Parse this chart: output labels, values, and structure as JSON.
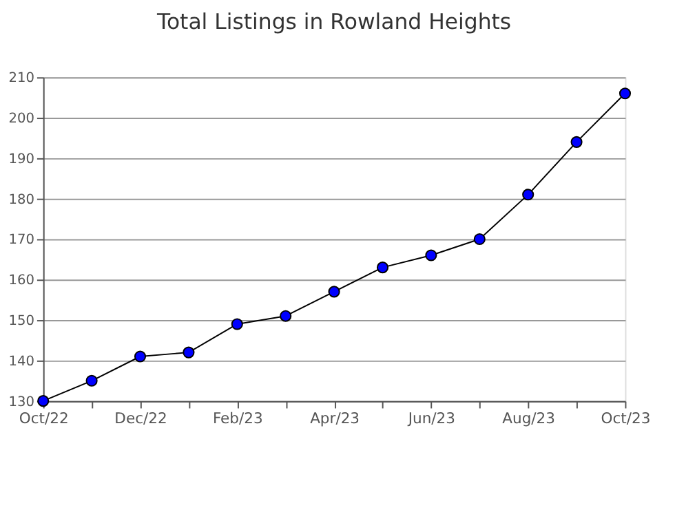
{
  "chart_data": {
    "type": "line",
    "title": "Total Listings in Rowland Heights",
    "categories": [
      "Oct/22",
      null,
      "Dec/22",
      null,
      "Feb/23",
      null,
      "Apr/23",
      null,
      "Jun/23",
      null,
      "Aug/23",
      null,
      "Oct/23"
    ],
    "series": [
      {
        "color": "#0000ff",
        "values": [
          130,
          135,
          141,
          142,
          149,
          151,
          157,
          163,
          166,
          170,
          181,
          194,
          206
        ]
      }
    ],
    "ylim": [
      130,
      210
    ],
    "yticks": [
      130,
      140,
      150,
      160,
      170,
      180,
      190,
      200,
      210
    ],
    "grid": "y",
    "marker": "circle",
    "line_style": "solid"
  }
}
